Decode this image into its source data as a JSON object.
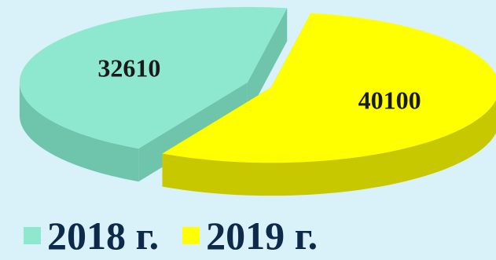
{
  "chart_data": {
    "type": "pie",
    "style": "3d-exploded",
    "categories": [
      "2018 г.",
      "2019 г."
    ],
    "values": [
      32610,
      40100
    ],
    "data_labels": [
      "32610",
      "40100"
    ],
    "colors": [
      "#8ee8cf",
      "#ffff00"
    ],
    "side_colors": [
      "#6fc4ac",
      "#c8c800"
    ],
    "legend_position": "bottom",
    "title": "",
    "grid": false
  }
}
